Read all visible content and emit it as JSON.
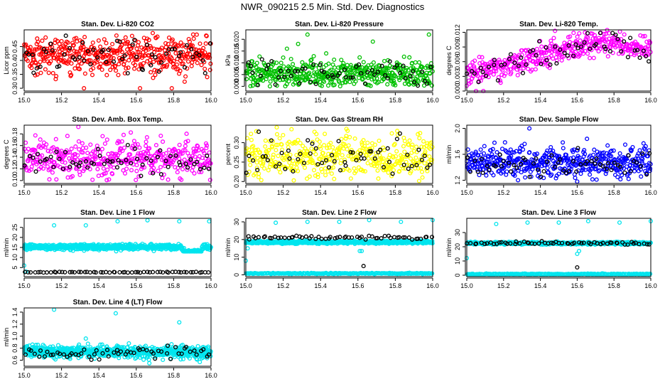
{
  "figure_title": "NWR_090215  2.5 Min. Std. Dev. Diagnostics",
  "chart_data": [
    {
      "id": "co2",
      "type": "scatter",
      "title": "Stan. Dev. Li-820 CO2",
      "ylabel": "Licor ppm",
      "xlim": [
        15.0,
        16.0
      ],
      "ylim": [
        0.29,
        0.51
      ],
      "xticks": [
        15.0,
        15.2,
        15.4,
        15.6,
        15.8,
        16.0
      ],
      "xtick_labels": [
        "15.0",
        "15.2",
        "15.4",
        "15.6",
        "15.8",
        "16.0"
      ],
      "yticks": [
        0.3,
        0.35,
        0.4,
        0.45
      ],
      "ytick_labels": [
        "0.30",
        "0.35",
        "0.40",
        "0.45"
      ],
      "series": [
        {
          "color": "#ff0000",
          "n": 480,
          "mean": 0.42,
          "sd": 0.035,
          "min": 0.3,
          "max": 0.5,
          "outliers": [
            [
              15.32,
              0.3
            ],
            [
              15.62,
              0.3
            ],
            [
              15.79,
              0.3
            ]
          ]
        },
        {
          "color": "#000000",
          "n": 60,
          "mean": 0.42,
          "sd": 0.03,
          "min": 0.33,
          "max": 0.49
        }
      ]
    },
    {
      "id": "pressure",
      "type": "scatter",
      "title": "Stan. Dev. Li-820 Pressure",
      "ylabel": "kPa",
      "xlim": [
        15.0,
        16.0
      ],
      "ylim": [
        -0.002,
        0.024
      ],
      "xticks": [
        15.0,
        15.2,
        15.4,
        15.6,
        15.8,
        16.0
      ],
      "xtick_labels": [
        "15.0",
        "15.2",
        "15.4",
        "15.6",
        "15.8",
        "16.0"
      ],
      "yticks": [
        0.0,
        0.005,
        0.01,
        0.015,
        0.02
      ],
      "ytick_labels": [
        "0.000",
        "0.005",
        "0.010",
        "0.015",
        "0.020"
      ],
      "series": [
        {
          "color": "#00c000",
          "n": 480,
          "mean": 0.0055,
          "sd": 0.0028,
          "min": 0.0,
          "max": 0.013,
          "outliers": [
            [
              15.28,
              0.018
            ],
            [
              15.33,
              0.022
            ],
            [
              15.43,
              0.014
            ],
            [
              15.68,
              0.019
            ],
            [
              15.98,
              0.022
            ],
            [
              15.22,
              0.016
            ]
          ]
        },
        {
          "color": "#000000",
          "n": 60,
          "mean": 0.0055,
          "sd": 0.0025,
          "min": 0.0,
          "max": 0.012
        }
      ]
    },
    {
      "id": "temp",
      "type": "scatter",
      "title": "Stan. Dev. Li-820 Temp.",
      "ylabel": "degrees C",
      "xlim": [
        15.0,
        16.0
      ],
      "ylim": [
        0.0,
        0.0125
      ],
      "xticks": [
        15.0,
        15.2,
        15.4,
        15.6,
        15.8,
        16.0
      ],
      "xtick_labels": [
        "15.0",
        "15.2",
        "15.4",
        "15.6",
        "15.8",
        "16.0"
      ],
      "yticks": [
        0.0,
        0.003,
        0.006,
        0.009,
        0.012
      ],
      "ytick_labels": [
        "0.000",
        "0.003",
        "0.006",
        "0.009",
        "0.012"
      ],
      "series": [
        {
          "color": "#ff00ff",
          "n": 420,
          "trend": [
            [
              15.0,
              0.0035
            ],
            [
              15.3,
              0.006
            ],
            [
              15.55,
              0.0085
            ],
            [
              15.75,
              0.01
            ],
            [
              16.0,
              0.0085
            ]
          ],
          "sd": 0.0013,
          "min": 0.0,
          "max": 0.0125,
          "outliers": [
            [
              15.05,
              0.0
            ],
            [
              15.09,
              0.0
            ]
          ]
        },
        {
          "color": "#000000",
          "n": 60,
          "trend": [
            [
              15.0,
              0.0035
            ],
            [
              15.3,
              0.006
            ],
            [
              15.55,
              0.0085
            ],
            [
              15.75,
              0.01
            ],
            [
              16.0,
              0.0085
            ]
          ],
          "sd": 0.0012,
          "min": 0.001,
          "max": 0.012
        }
      ]
    },
    {
      "id": "boxtemp",
      "type": "scatter",
      "title": "Stan. Dev. Amb. Box Temp.",
      "ylabel": "degrees C",
      "xlim": [
        15.0,
        16.0
      ],
      "ylim": [
        0.095,
        0.195
      ],
      "xticks": [
        15.0,
        15.2,
        15.4,
        15.6,
        15.8,
        16.0
      ],
      "xtick_labels": [
        "15.0",
        "15.2",
        "15.4",
        "15.6",
        "15.8",
        "16.0"
      ],
      "yticks": [
        0.1,
        0.12,
        0.14,
        0.16,
        0.18
      ],
      "ytick_labels": [
        "0.10",
        "0.12",
        "0.14",
        "0.16",
        "0.18"
      ],
      "series": [
        {
          "color": "#ff00ff",
          "n": 420,
          "mean": 0.137,
          "sd": 0.016,
          "min": 0.1,
          "max": 0.19,
          "outliers": [
            [
              15.29,
              0.192
            ]
          ]
        },
        {
          "color": "#000000",
          "n": 60,
          "mean": 0.135,
          "sd": 0.012,
          "min": 0.105,
          "max": 0.17
        }
      ]
    },
    {
      "id": "rh",
      "type": "scatter",
      "title": "Stan. Dev. Gas Stream RH",
      "ylabel": "percent",
      "xlim": [
        15.0,
        16.0
      ],
      "ylim": [
        0.195,
        0.345
      ],
      "xticks": [
        15.0,
        15.2,
        15.4,
        15.6,
        15.8,
        16.0
      ],
      "xtick_labels": [
        "15.0",
        "15.2",
        "15.4",
        "15.6",
        "15.8",
        "16.0"
      ],
      "yticks": [
        0.2,
        0.25,
        0.3
      ],
      "ytick_labels": [
        "0.20",
        "0.25",
        "0.30"
      ],
      "series": [
        {
          "color": "#ffff00",
          "n": 420,
          "mean": 0.265,
          "sd": 0.028,
          "min": 0.2,
          "max": 0.34
        },
        {
          "color": "#000000",
          "n": 60,
          "mean": 0.265,
          "sd": 0.025,
          "min": 0.21,
          "max": 0.33
        }
      ]
    },
    {
      "id": "sampleflow",
      "type": "scatter",
      "title": "Stan. Dev. Sample Flow",
      "ylabel": "ml/min",
      "xlim": [
        15.0,
        16.0
      ],
      "ylim": [
        1.15,
        2.05
      ],
      "xticks": [
        15.0,
        15.2,
        15.4,
        15.6,
        15.8,
        16.0
      ],
      "xtick_labels": [
        "15.0",
        "15.2",
        "15.4",
        "15.6",
        "15.8",
        "16.0"
      ],
      "yticks": [
        1.2,
        1.6,
        2.0
      ],
      "ytick_labels": [
        "1.2",
        "1.6",
        "2.0"
      ],
      "series": [
        {
          "color": "#0000ff",
          "n": 480,
          "mean": 1.47,
          "sd": 0.12,
          "min": 1.2,
          "max": 1.85,
          "outliers": [
            [
              15.34,
              2.0
            ],
            [
              15.6,
              1.18
            ]
          ]
        },
        {
          "color": "#000000",
          "n": 60,
          "mean": 1.45,
          "sd": 0.1,
          "min": 1.25,
          "max": 1.75
        }
      ]
    },
    {
      "id": "line1",
      "type": "scatter",
      "title": "Stan. Dev. Line 1 Flow",
      "ylabel": "ml/min",
      "xlim": [
        15.0,
        16.0
      ],
      "ylim": [
        0.5,
        29.5
      ],
      "xticks": [
        15.0,
        15.2,
        15.4,
        15.6,
        15.8,
        16.0
      ],
      "xtick_labels": [
        "15.0",
        "15.2",
        "15.4",
        "15.6",
        "15.8",
        "16.0"
      ],
      "yticks": [
        5,
        10,
        15,
        20,
        25
      ],
      "ytick_labels": [
        "5",
        "10",
        "15",
        "20",
        "25"
      ],
      "series": [
        {
          "color": "#00e5ee",
          "n": 700,
          "mean": 15.2,
          "sd": 0.7,
          "min": 13.0,
          "max": 17.5,
          "dip": [
            15.85,
            15.95,
            12.5
          ],
          "outliers": [
            [
              15.0,
              6.0
            ],
            [
              15.16,
              26.0
            ],
            [
              15.33,
              26.0
            ],
            [
              15.5,
              28.0
            ],
            [
              15.66,
              28.5
            ],
            [
              15.83,
              28.0
            ],
            [
              15.99,
              28.0
            ],
            [
              15.01,
              3.0
            ]
          ]
        },
        {
          "color": "#000000",
          "n": 60,
          "mean": 2.7,
          "sd": 0.1,
          "min": 2.5,
          "max": 2.9
        }
      ]
    },
    {
      "id": "line2",
      "type": "scatter",
      "title": "Stan. Dev. Line 2 Flow",
      "ylabel": "ml/min",
      "xlim": [
        15.0,
        16.0
      ],
      "ylim": [
        -1.0,
        32.0
      ],
      "xticks": [
        15.0,
        15.2,
        15.4,
        15.6,
        15.8,
        16.0
      ],
      "xtick_labels": [
        "15.0",
        "15.2",
        "15.4",
        "15.6",
        "15.8",
        "16.0"
      ],
      "yticks": [
        0,
        10,
        20,
        30
      ],
      "ytick_labels": [
        "0",
        "10",
        "20",
        "30"
      ],
      "series": [
        {
          "color": "#00e5ee",
          "n": 700,
          "mean": 18.5,
          "sd": 0.4,
          "min": 17.5,
          "max": 20.0,
          "outliers": [
            [
              15.0,
              8.0
            ],
            [
              15.01,
              15.0
            ],
            [
              15.16,
              29.5
            ],
            [
              15.33,
              30.0
            ],
            [
              15.5,
              30.0
            ],
            [
              15.66,
              31.0
            ],
            [
              15.83,
              30.0
            ],
            [
              16.0,
              31.0
            ],
            [
              15.61,
              13.5
            ],
            [
              15.62,
              13.5
            ]
          ]
        },
        {
          "color": "#00e5ee",
          "n": 220,
          "mean": 0.8,
          "sd": 0.15,
          "min": 0.4,
          "max": 1.2
        },
        {
          "color": "#000000",
          "n": 60,
          "mean": 21.0,
          "sd": 0.5,
          "min": 20.0,
          "max": 23.0,
          "outliers": [
            [
              15.63,
              5.0
            ]
          ]
        }
      ]
    },
    {
      "id": "line3",
      "type": "scatter",
      "title": "Stan. Dev. Line 3 Flow",
      "ylabel": "ml/min",
      "xlim": [
        15.0,
        16.0
      ],
      "ylim": [
        -1.0,
        40.0
      ],
      "xticks": [
        15.0,
        15.2,
        15.4,
        15.6,
        15.8,
        16.0
      ],
      "xtick_labels": [
        "15.0",
        "15.2",
        "15.4",
        "15.6",
        "15.8",
        "16.0"
      ],
      "yticks": [
        0,
        10,
        20,
        30
      ],
      "ytick_labels": [
        "0",
        "10",
        "20",
        "30"
      ],
      "series": [
        {
          "color": "#00e5ee",
          "n": 700,
          "mean": 22.5,
          "sd": 0.4,
          "min": 21.5,
          "max": 24.0,
          "outliers": [
            [
              15.0,
              12.0
            ],
            [
              15.16,
              36.0
            ],
            [
              15.33,
              37.0
            ],
            [
              15.5,
              37.0
            ],
            [
              15.66,
              38.0
            ],
            [
              15.83,
              37.0
            ],
            [
              16.0,
              38.0
            ],
            [
              15.6,
              15.0
            ],
            [
              15.61,
              17.0
            ]
          ]
        },
        {
          "color": "#00e5ee",
          "n": 220,
          "mean": 0.8,
          "sd": 0.15,
          "min": 0.4,
          "max": 1.2
        },
        {
          "color": "#000000",
          "n": 60,
          "mean": 22.5,
          "sd": 0.5,
          "min": 21.5,
          "max": 24.0,
          "outliers": [
            [
              15.6,
              5.5
            ]
          ]
        }
      ]
    },
    {
      "id": "line4",
      "type": "scatter",
      "title": "Stan. Dev. Line 4 (LT) Flow",
      "ylabel": "ml/min",
      "xlim": [
        15.0,
        16.0
      ],
      "ylim": [
        0.5,
        1.47
      ],
      "xticks": [
        15.0,
        15.2,
        15.4,
        15.6,
        15.8,
        16.0
      ],
      "xtick_labels": [
        "15.0",
        "15.2",
        "15.4",
        "15.6",
        "15.8",
        "16.0"
      ],
      "yticks": [
        0.6,
        0.8,
        1.0,
        1.2,
        1.4
      ],
      "ytick_labels": [
        "0.6",
        "0.8",
        "1.0",
        "1.2",
        "1.4"
      ],
      "series": [
        {
          "color": "#00e5ee",
          "n": 700,
          "mean": 0.74,
          "sd": 0.05,
          "min": 0.6,
          "max": 0.9,
          "outliers": [
            [
              15.16,
              1.44
            ],
            [
              15.49,
              1.38
            ],
            [
              15.83,
              1.23
            ],
            [
              15.33,
              0.96
            ],
            [
              15.67,
              0.55
            ],
            [
              15.94,
              0.57
            ]
          ]
        },
        {
          "color": "#000000",
          "n": 60,
          "mean": 0.72,
          "sd": 0.05,
          "min": 0.6,
          "max": 0.85
        }
      ]
    }
  ]
}
